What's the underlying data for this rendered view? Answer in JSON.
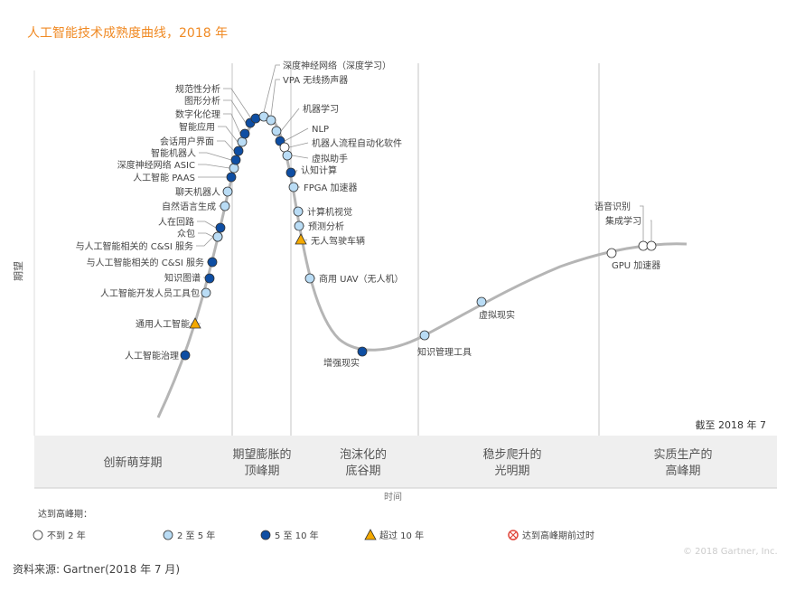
{
  "title": "人工智能技术成熟度曲线，2018 年",
  "colors": {
    "title": "#f08a24",
    "curve": "#b5b5b5",
    "dark": "#0e4ea3",
    "light": "#b9dcf5",
    "white": "#ffffff",
    "triangle": "#f4a900",
    "obsolete": "#e0453a"
  },
  "chart_data": {
    "type": "scatter",
    "title": "人工智能技术成熟度曲线，2018 年",
    "ylabel": "期望",
    "xlabel": "时间",
    "as_of": "截至 2018 年 7",
    "phases": [
      "创新萌芽期",
      "期望膨胀的顶峰期",
      "泡沫化的底谷期",
      "稳步爬升的光明期",
      "实质生产的高峰期"
    ],
    "legend_title": "达到高峰期：",
    "legend": [
      {
        "key": "lt2",
        "label": "不到 2 年",
        "marker": "white-circle"
      },
      {
        "key": "2to5",
        "label": "2 至 5 年",
        "marker": "light-circle"
      },
      {
        "key": "5to10",
        "label": "5 至 10 年",
        "marker": "dark-circle"
      },
      {
        "key": "gt10",
        "label": "超过 10 年",
        "marker": "triangle"
      },
      {
        "key": "obsolete",
        "label": "达到高峰期前过时",
        "marker": "cross-circle"
      }
    ],
    "technologies": [
      {
        "name": "人工智能治理",
        "phase": "创新萌芽期",
        "plateau": "5to10"
      },
      {
        "name": "通用人工智能",
        "phase": "创新萌芽期",
        "plateau": "gt10"
      },
      {
        "name": "人工智能开发人员工具包",
        "phase": "创新萌芽期",
        "plateau": "2to5"
      },
      {
        "name": "知识图谱",
        "phase": "创新萌芽期",
        "plateau": "5to10"
      },
      {
        "name": "与人工智能相关的 C&SI 服务",
        "phase": "创新萌芽期",
        "plateau": "5to10"
      },
      {
        "name": "与人工智能相关的 C&SI 服务",
        "phase": "创新萌芽期",
        "plateau": "2to5"
      },
      {
        "name": "众包",
        "phase": "创新萌芽期",
        "plateau": "2to5"
      },
      {
        "name": "人在回路",
        "phase": "创新萌芽期",
        "plateau": "5to10"
      },
      {
        "name": "自然语言生成",
        "phase": "期望膨胀的顶峰期",
        "plateau": "2to5"
      },
      {
        "name": "聊天机器人",
        "phase": "期望膨胀的顶峰期",
        "plateau": "2to5"
      },
      {
        "name": "人工智能 PAAS",
        "phase": "期望膨胀的顶峰期",
        "plateau": "5to10"
      },
      {
        "name": "深度神经网络 ASIC",
        "phase": "期望膨胀的顶峰期",
        "plateau": "2to5"
      },
      {
        "name": "智能机器人",
        "phase": "期望膨胀的顶峰期",
        "plateau": "5to10"
      },
      {
        "name": "会话用户界面",
        "phase": "期望膨胀的顶峰期",
        "plateau": "5to10"
      },
      {
        "name": "智能应用",
        "phase": "期望膨胀的顶峰期",
        "plateau": "2to5"
      },
      {
        "name": "数字化伦理",
        "phase": "期望膨胀的顶峰期",
        "plateau": "5to10"
      },
      {
        "name": "图形分析",
        "phase": "期望膨胀的顶峰期",
        "plateau": "5to10"
      },
      {
        "name": "规范性分析",
        "phase": "期望膨胀的顶峰期",
        "plateau": "5to10"
      },
      {
        "name": "深度神经网络（深度学习）",
        "phase": "期望膨胀的顶峰期",
        "plateau": "2to5"
      },
      {
        "name": "VPA 无线扬声器",
        "phase": "期望膨胀的顶峰期",
        "plateau": "2to5"
      },
      {
        "name": "机器学习",
        "phase": "期望膨胀的顶峰期",
        "plateau": "2to5"
      },
      {
        "name": "NLP",
        "phase": "期望膨胀的顶峰期",
        "plateau": "5to10"
      },
      {
        "name": "机器人流程自动化软件",
        "phase": "期望膨胀的顶峰期",
        "plateau": "lt2"
      },
      {
        "name": "虚拟助手",
        "phase": "期望膨胀的顶峰期",
        "plateau": "2to5"
      },
      {
        "name": "认知计算",
        "phase": "泡沫化的底谷期",
        "plateau": "5to10"
      },
      {
        "name": "FPGA 加速器",
        "phase": "泡沫化的底谷期",
        "plateau": "2to5"
      },
      {
        "name": "计算机视觉",
        "phase": "泡沫化的底谷期",
        "plateau": "2to5"
      },
      {
        "name": "预测分析",
        "phase": "泡沫化的底谷期",
        "plateau": "2to5"
      },
      {
        "name": "无人驾驶车辆",
        "phase": "泡沫化的底谷期",
        "plateau": "gt10"
      },
      {
        "name": "商用 UAV（无人机）",
        "phase": "泡沫化的底谷期",
        "plateau": "2to5"
      },
      {
        "name": "增强现实",
        "phase": "泡沫化的底谷期",
        "plateau": "5to10"
      },
      {
        "name": "知识管理工具",
        "phase": "稳步爬升的光明期",
        "plateau": "2to5"
      },
      {
        "name": "虚拟现实",
        "phase": "稳步爬升的光明期",
        "plateau": "2to5"
      },
      {
        "name": "GPU 加速器",
        "phase": "实质生产的高峰期",
        "plateau": "lt2"
      },
      {
        "name": "语音识别",
        "phase": "实质生产的高峰期",
        "plateau": "lt2"
      },
      {
        "name": "集成学习",
        "phase": "实质生产的高峰期",
        "plateau": "lt2"
      }
    ]
  },
  "copyright": "© 2018 Gartner, Inc.",
  "source": "资料来源: Gartner(2018 年 7 月)"
}
